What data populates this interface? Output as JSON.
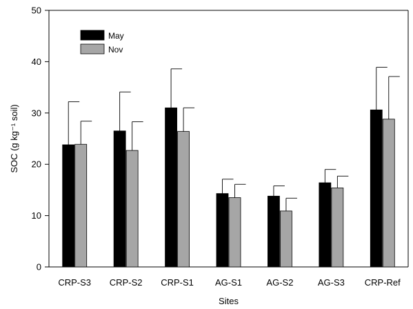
{
  "chart_data": {
    "type": "bar",
    "xlabel": "Sites",
    "ylabel": "SOC (g kg⁻¹ soil)",
    "ylim": [
      0,
      50
    ],
    "yticks": [
      0,
      10,
      20,
      30,
      40,
      50
    ],
    "grid": false,
    "legend_position": "top-left",
    "categories": [
      "CRP-S3",
      "CRP-S2",
      "CRP-S1",
      "AG-S1",
      "AG-S2",
      "AG-S3",
      "CRP-Ref"
    ],
    "series": [
      {
        "name": "May",
        "color": "#000000",
        "values": [
          23.8,
          26.5,
          31.0,
          14.3,
          13.8,
          16.4,
          30.6
        ],
        "error_upper": [
          32.2,
          34.1,
          38.6,
          17.1,
          15.8,
          19.0,
          38.9
        ]
      },
      {
        "name": "Nov",
        "color": "#a6a6a6",
        "values": [
          23.9,
          22.7,
          26.4,
          13.5,
          10.9,
          15.4,
          28.8
        ],
        "error_upper": [
          28.4,
          28.3,
          31.0,
          16.1,
          13.4,
          17.7,
          37.1
        ]
      }
    ]
  }
}
